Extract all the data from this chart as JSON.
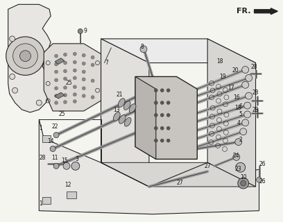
{
  "bg": "#f5f5f0",
  "lc": "#222222",
  "fig_w": 4.08,
  "fig_h": 3.2,
  "dpi": 100,
  "gray_part": "#888888",
  "dark_part": "#333333",
  "med_gray": "#666666"
}
